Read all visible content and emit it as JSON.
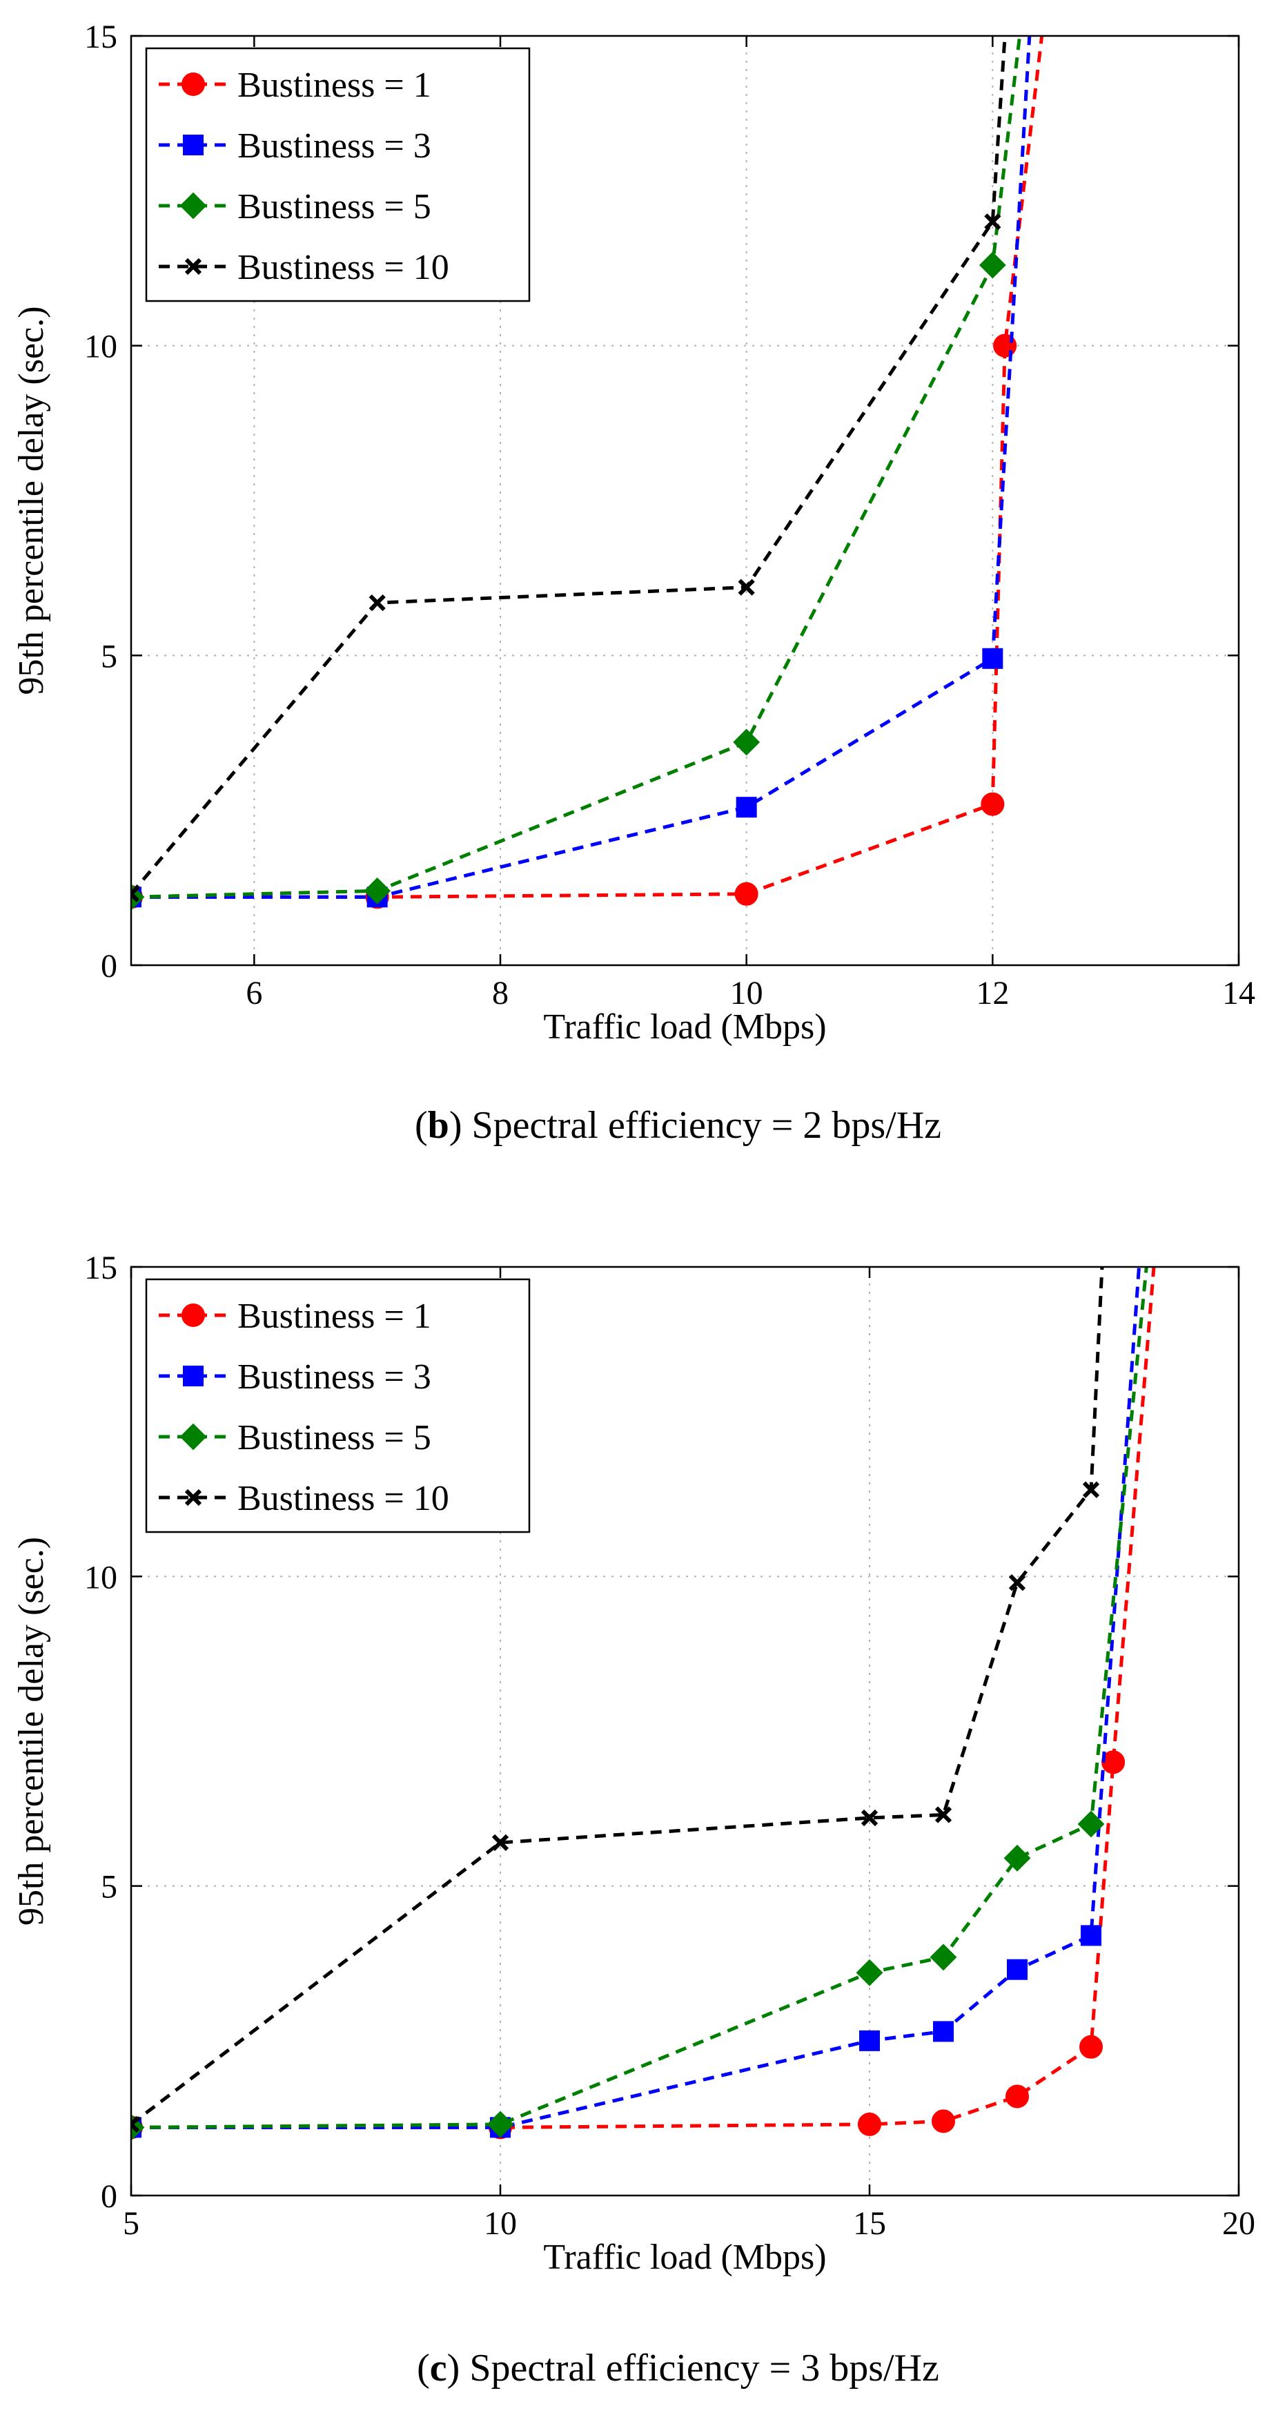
{
  "chart_data": [
    {
      "type": "line",
      "panel": "b",
      "caption_label": "b",
      "caption_text": "Spectral efficiency = 2 bps/Hz",
      "xlabel": "Traffic load (Mbps)",
      "ylabel": "95th percentile delay (sec.)",
      "xlim": [
        5,
        14
      ],
      "ylim": [
        0,
        15
      ],
      "xticks": [
        6,
        8,
        10,
        12,
        14
      ],
      "xtick_labels": [
        "6",
        "8",
        "10",
        "12",
        "14"
      ],
      "yticks": [
        0,
        5,
        10,
        15
      ],
      "ytick_labels": [
        "0",
        "5",
        "10",
        "15"
      ],
      "grid": true,
      "legend_position": "top-left",
      "series": [
        {
          "name": "Bustiness = 1",
          "color": "#ff0000",
          "marker": "circle",
          "x": [
            5,
            7,
            10,
            12,
            12.1,
            12.4
          ],
          "y": [
            1.1,
            1.1,
            1.15,
            2.6,
            10.0,
            15.0
          ]
        },
        {
          "name": "Bustiness = 3",
          "color": "#0000ff",
          "marker": "square",
          "x": [
            5,
            7,
            10,
            12,
            12.3
          ],
          "y": [
            1.1,
            1.1,
            2.55,
            4.95,
            15.0
          ]
        },
        {
          "name": "Bustiness = 5",
          "color": "#008000",
          "marker": "diamond",
          "x": [
            5,
            7,
            10,
            12,
            12.22
          ],
          "y": [
            1.1,
            1.2,
            3.6,
            11.3,
            15.0
          ]
        },
        {
          "name": "Bustiness = 10",
          "color": "#000000",
          "marker": "x",
          "x": [
            5,
            7,
            10,
            12,
            12.1
          ],
          "y": [
            1.15,
            5.85,
            6.1,
            12.0,
            15.0
          ]
        }
      ]
    },
    {
      "type": "line",
      "panel": "c",
      "caption_label": "c",
      "caption_text": "Spectral efficiency = 3 bps/Hz",
      "xlabel": "Traffic load (Mbps)",
      "ylabel": "95th percentile delay (sec.)",
      "xlim": [
        5,
        20
      ],
      "ylim": [
        0,
        15
      ],
      "xticks": [
        5,
        10,
        15,
        20
      ],
      "xtick_labels": [
        "5",
        "10",
        "15",
        "20"
      ],
      "yticks": [
        0,
        5,
        10,
        15
      ],
      "ytick_labels": [
        "0",
        "5",
        "10",
        "15"
      ],
      "grid": true,
      "legend_position": "top-left",
      "series": [
        {
          "name": "Bustiness = 1",
          "color": "#ff0000",
          "marker": "circle",
          "x": [
            5,
            10,
            15,
            16,
            17,
            18,
            18.3,
            18.85
          ],
          "y": [
            1.1,
            1.1,
            1.15,
            1.2,
            1.6,
            2.4,
            7.0,
            15.0
          ]
        },
        {
          "name": "Bustiness = 3",
          "color": "#0000ff",
          "marker": "square",
          "x": [
            5,
            10,
            15,
            16,
            17,
            18,
            18.65
          ],
          "y": [
            1.1,
            1.1,
            2.5,
            2.65,
            3.65,
            4.2,
            15.0
          ]
        },
        {
          "name": "Bustiness = 5",
          "color": "#008000",
          "marker": "diamond",
          "x": [
            5,
            10,
            15,
            16,
            17,
            18,
            18.75
          ],
          "y": [
            1.1,
            1.15,
            3.6,
            3.85,
            5.45,
            6.0,
            15.0
          ]
        },
        {
          "name": "Bustiness = 10",
          "color": "#000000",
          "marker": "x",
          "x": [
            5,
            10,
            15,
            16,
            17,
            18,
            18.15
          ],
          "y": [
            1.15,
            5.7,
            6.1,
            6.15,
            9.9,
            11.4,
            15.0
          ]
        }
      ]
    }
  ]
}
